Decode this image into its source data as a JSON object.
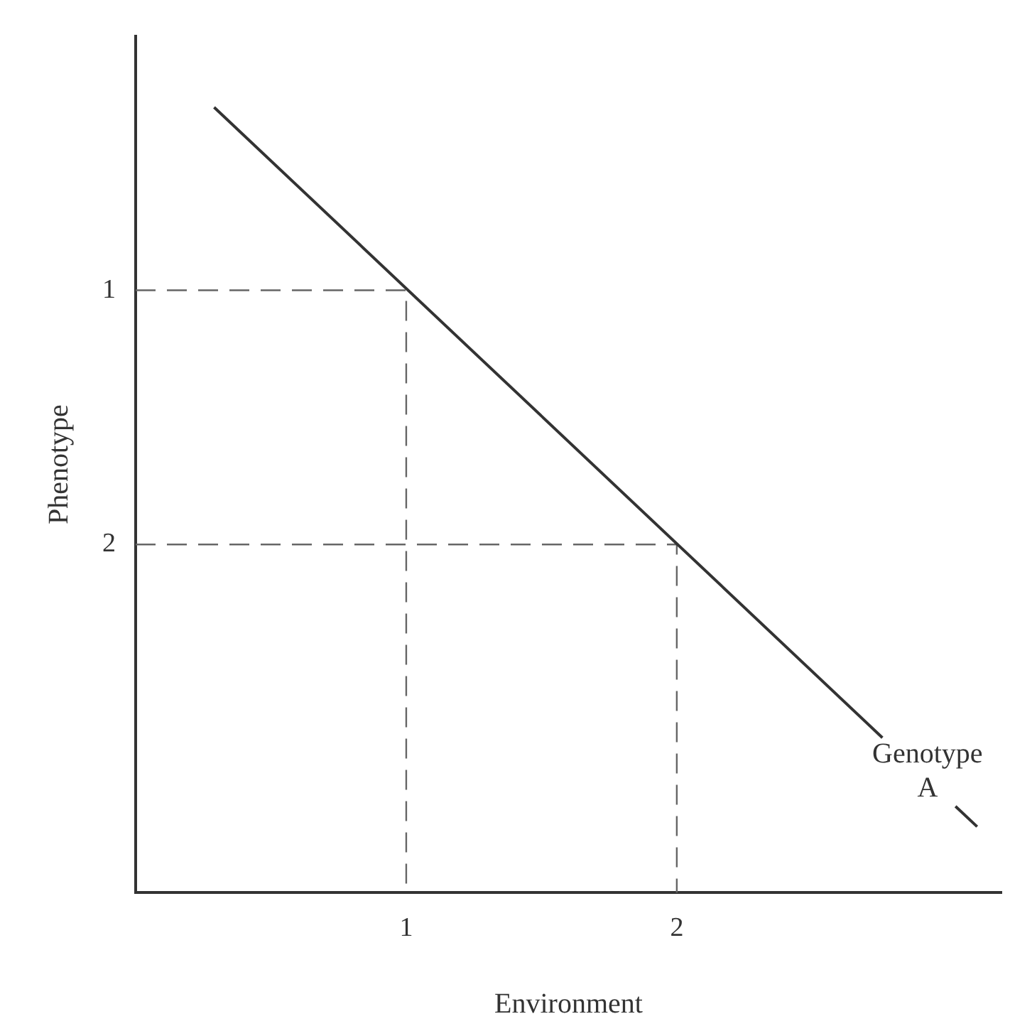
{
  "chart_data": {
    "type": "line",
    "xlabel": "Environment",
    "ylabel": "Phenotype",
    "xlim": [
      0,
      3.2
    ],
    "xticks": [
      1,
      2
    ],
    "ylim": [
      3.37,
      0
    ],
    "yticks": [
      1,
      2
    ],
    "grid": false,
    "legend": false,
    "marker": "none",
    "series": [
      {
        "name": "Genotype A",
        "color": "#333333",
        "x": [
          0.29,
          2.76,
          2.9,
          3.03,
          3.11
        ],
        "values": [
          0.28,
          2.76,
          null,
          3.03,
          3.11
        ]
      },
      {
        "color": "#666666",
        "line_style": "dashed",
        "x": [
          0,
          1,
          1
        ],
        "values": [
          1,
          1,
          3.37
        ]
      },
      {
        "color": "#666666",
        "line_style": "dashed",
        "x": [
          0,
          2,
          2
        ],
        "values": [
          2,
          2,
          3.37
        ]
      }
    ]
  }
}
